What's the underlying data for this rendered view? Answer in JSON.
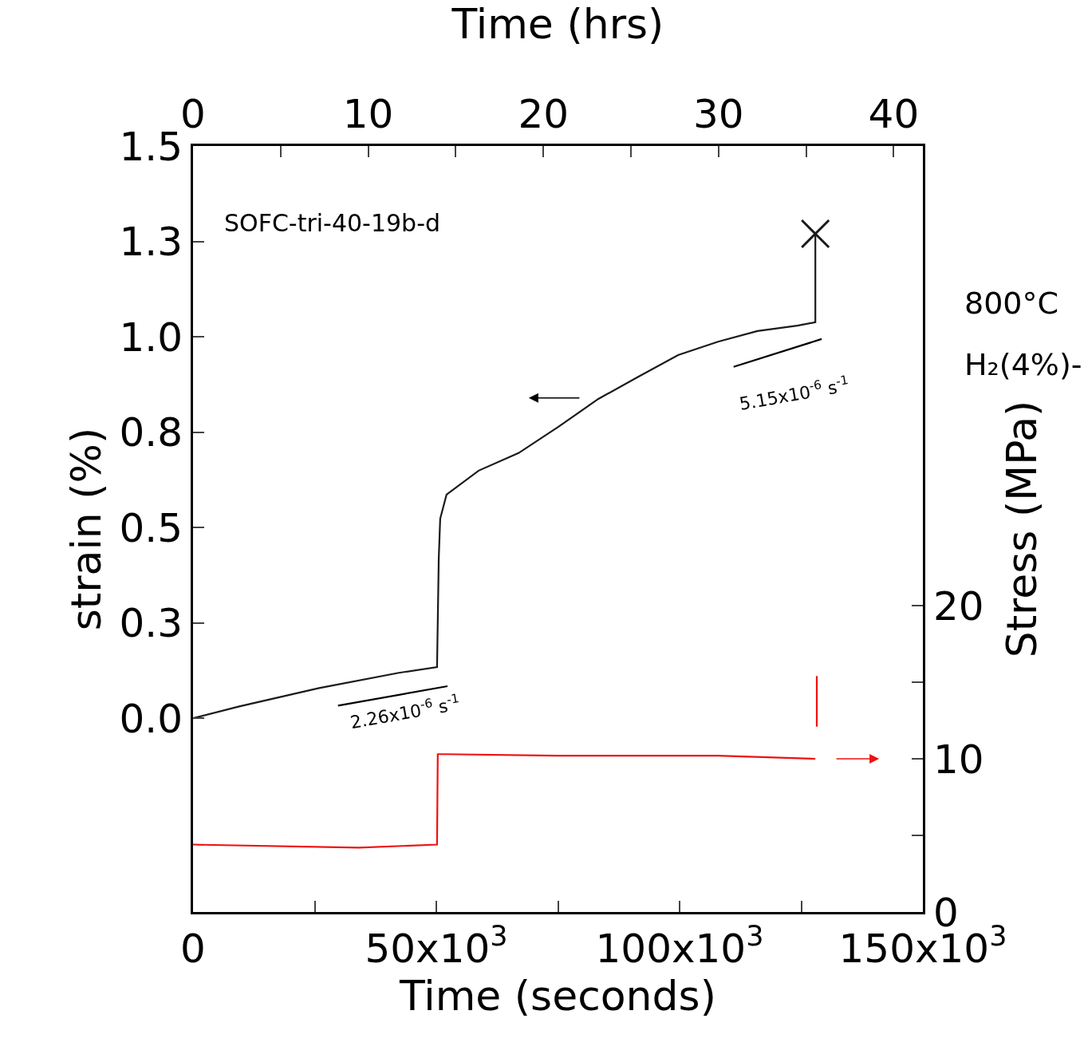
{
  "chart_data": {
    "type": "line",
    "xlabel": "Time (seconds)",
    "x2label": "Time (hrs)",
    "ylabel": "strain (%)",
    "y2label": "Stress (MPa)",
    "xlim": [
      0,
      150000
    ],
    "xticks": [
      0,
      {
        "value": 25000,
        "label": null
      },
      {
        "value": 50000,
        "label": "50x10$^{3}$"
      },
      {
        "value": 75000,
        "label": null
      },
      {
        "value": 100000,
        "label": "100x10$^{3}$"
      },
      {
        "value": 125000,
        "label": null
      },
      {
        "value": 150000,
        "label": "150x10$^{3}$"
      }
    ],
    "x2lim": [
      0,
      41.667
    ],
    "x2ticks": [
      0,
      {
        "value": 5,
        "label": null
      },
      10,
      {
        "value": 15,
        "label": null
      },
      20,
      {
        "value": 25,
        "label": null
      },
      30,
      {
        "value": 35,
        "label": null
      },
      40
    ],
    "ylim": [
      -0.508,
      1.5
    ],
    "yticks": [
      {
        "value": 0,
        "label": "0.0"
      },
      {
        "value": 0.25,
        "label": "0.3"
      },
      0.5,
      {
        "value": 0.75,
        "label": "0.8"
      },
      {
        "value": 1,
        "label": "1.0"
      },
      {
        "value": 1.25,
        "label": "1.3"
      },
      1.5
    ],
    "y2lim": [
      0,
      50
    ],
    "y2ticks": [
      0,
      {
        "value": 5,
        "label": null
      },
      10,
      {
        "value": 15,
        "label": null
      },
      20
    ],
    "grid": false,
    "marker": "none",
    "line_style": "solid",
    "series": [
      {
        "color": "#1a1a1a",
        "x": [
          0,
          9500,
          25900,
          42300,
          50150,
          50500,
          50800,
          52100,
          58700,
          66900,
          75100,
          83300,
          91500,
          99700,
          107900,
          116000,
          124200,
          127900,
          127900
        ],
        "values": [
          0,
          0.031,
          0.079,
          0.119,
          0.134,
          0.418,
          0.523,
          0.586,
          0.649,
          0.695,
          0.764,
          0.837,
          0.895,
          0.952,
          0.987,
          1.015,
          1.029,
          1.038,
          1.27
        ]
      },
      {
        "type": "scatter",
        "marker": "cross",
        "color": "#1a1a1a",
        "x": [
          127900
        ],
        "values": [
          1.27
        ]
      },
      {
        "color": "#ee1111",
        "axis": "y2",
        "x": [
          0,
          34100,
          50150,
          50300,
          52100,
          75100,
          107900,
          127900,
          128000,
          128200,
          128200
        ],
        "values": [
          4.4,
          4.2,
          4.4,
          10.3,
          10.3,
          10.2,
          10.2,
          10.0,
          null,
          12.1,
          15.4
        ]
      },
      {
        "color": "#000000",
        "x": [
          29800,
          52300
        ],
        "values": [
          0.033,
          0.084
        ]
      },
      {
        "color": "#000000",
        "x": [
          111100,
          129200
        ],
        "values": [
          0.921,
          0.994
        ]
      }
    ],
    "annotations": [
      "SOFC-tri-40-19b-d",
      "800°C",
      "H₂(4%)-",
      "2.26x10$^{-6}$ s$^{-1}$",
      "5.15x10$^{-6}$ s$^{-1}$"
    ]
  }
}
